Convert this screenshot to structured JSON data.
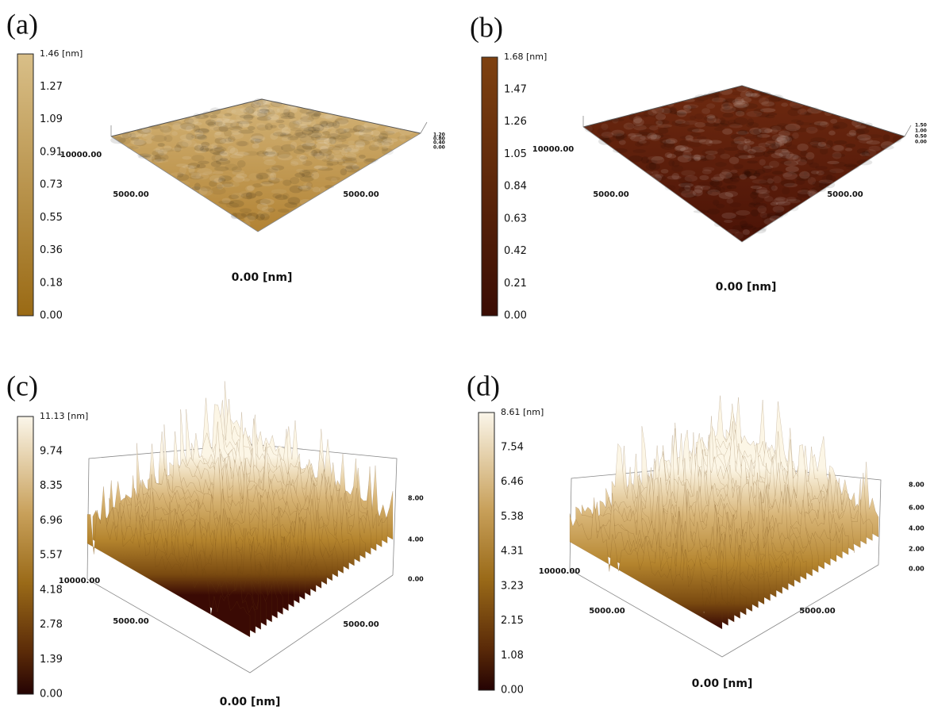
{
  "panels": [
    {
      "label": "(a)",
      "colorbar_ticks": [
        "1.46 [nm]",
        "1.27",
        "1.09",
        "0.91",
        "0.73",
        "0.55",
        "0.36",
        "0.18",
        "0.00"
      ],
      "z_ticks": [
        "1.20",
        "0.80",
        "0.40",
        "0.00"
      ],
      "axis_labels": {
        "left": "10000.00",
        "mid_left": "5000.00",
        "mid_right": "5000.00",
        "origin": "0.00 [nm]"
      }
    },
    {
      "label": "(b)",
      "colorbar_ticks": [
        "1.68 [nm]",
        "1.47",
        "1.26",
        "1.05",
        "0.84",
        "0.63",
        "0.42",
        "0.21",
        "0.00"
      ],
      "z_ticks": [
        "1.50",
        "1.00",
        "0.50",
        "0.00"
      ],
      "axis_labels": {
        "left": "10000.00",
        "mid_left": "5000.00",
        "mid_right": "5000.00",
        "origin": "0.00 [nm]"
      }
    },
    {
      "label": "(c)",
      "colorbar_ticks": [
        "11.13 [nm]",
        "9.74",
        "8.35",
        "6.96",
        "5.57",
        "4.18",
        "2.78",
        "1.39",
        "0.00"
      ],
      "z_ticks": [
        "8.00",
        "4.00",
        "0.00"
      ],
      "axis_labels": {
        "left": "10000.00",
        "mid_left": "5000.00",
        "mid_right": "5000.00",
        "origin": "0.00 [nm]"
      }
    },
    {
      "label": "(d)",
      "colorbar_ticks": [
        "8.61 [nm]",
        "7.54",
        "6.46",
        "5.38",
        "4.31",
        "3.23",
        "2.15",
        "1.08",
        "0.00"
      ],
      "z_ticks": [
        "8.00",
        "6.00",
        "4.00",
        "2.00",
        "0.00"
      ],
      "axis_labels": {
        "left": "10000.00",
        "mid_left": "5000.00",
        "mid_right": "5000.00",
        "origin": "0.00 [nm]"
      }
    }
  ]
}
